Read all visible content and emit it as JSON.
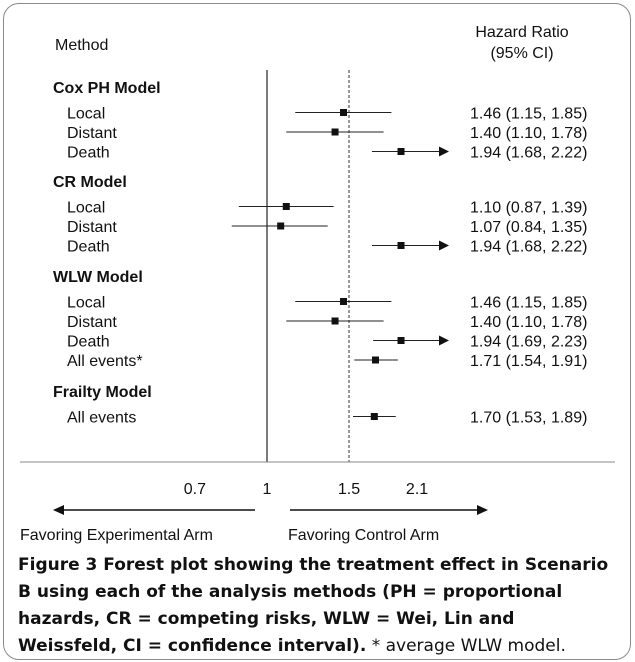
{
  "chart_data": {
    "type": "forest",
    "columns": {
      "method": "Method",
      "hr_line1": "Hazard Ratio",
      "hr_line2": "(95% CI)"
    },
    "axis": {
      "ticks": [
        "0.7",
        "1",
        "1.5",
        "2.1"
      ],
      "range": [
        0.55,
        2.35
      ],
      "reference_line": 1,
      "dashed_line": 1.5
    },
    "groups": [
      {
        "title": "Cox PH Model",
        "rows": [
          {
            "label": "Local",
            "hr": 1.46,
            "lo": 1.15,
            "hi": 1.85,
            "text": "1.46 (1.15, 1.85)",
            "arrow": false
          },
          {
            "label": "Distant",
            "hr": 1.4,
            "lo": 1.1,
            "hi": 1.78,
            "text": "1.40 (1.10, 1.78)",
            "arrow": false
          },
          {
            "label": "Death",
            "hr": 1.94,
            "lo": 1.68,
            "hi": 2.22,
            "text": "1.94 (1.68, 2.22)",
            "arrow": true
          }
        ]
      },
      {
        "title": "CR Model",
        "rows": [
          {
            "label": "Local",
            "hr": 1.1,
            "lo": 0.87,
            "hi": 1.39,
            "text": "1.10 (0.87, 1.39)",
            "arrow": false
          },
          {
            "label": "Distant",
            "hr": 1.07,
            "lo": 0.84,
            "hi": 1.35,
            "text": "1.07 (0.84, 1.35)",
            "arrow": false
          },
          {
            "label": "Death",
            "hr": 1.94,
            "lo": 1.68,
            "hi": 2.22,
            "text": "1.94 (1.68, 2.22)",
            "arrow": true
          }
        ]
      },
      {
        "title": "WLW Model",
        "rows": [
          {
            "label": "Local",
            "hr": 1.46,
            "lo": 1.15,
            "hi": 1.85,
            "text": "1.46 (1.15, 1.85)",
            "arrow": false
          },
          {
            "label": "Distant",
            "hr": 1.4,
            "lo": 1.1,
            "hi": 1.78,
            "text": "1.40 (1.10, 1.78)",
            "arrow": false
          },
          {
            "label": "Death",
            "hr": 1.94,
            "lo": 1.69,
            "hi": 2.23,
            "text": "1.94 (1.69, 2.23)",
            "arrow": true
          },
          {
            "label": "All events*",
            "hr": 1.71,
            "lo": 1.54,
            "hi": 1.91,
            "text": "1.71 (1.54, 1.91)",
            "arrow": false
          }
        ]
      },
      {
        "title": "Frailty Model",
        "rows": [
          {
            "label": "All events",
            "hr": 1.7,
            "lo": 1.53,
            "hi": 1.89,
            "text": "1.70 (1.53, 1.89)",
            "arrow": false
          }
        ]
      }
    ],
    "favoring_left": "Favoring Experimental Arm",
    "favoring_right": "Favoring Control Arm"
  },
  "caption": {
    "label": "Figure 3",
    "bold_text": " Forest plot showing the treatment effect in Scenario B using each of the analysis methods (PH = proportional hazards, CR = competing risks, WLW = Wei, Lin and Weissfeld, CI = confidence interval).",
    "note": " * average WLW model."
  }
}
